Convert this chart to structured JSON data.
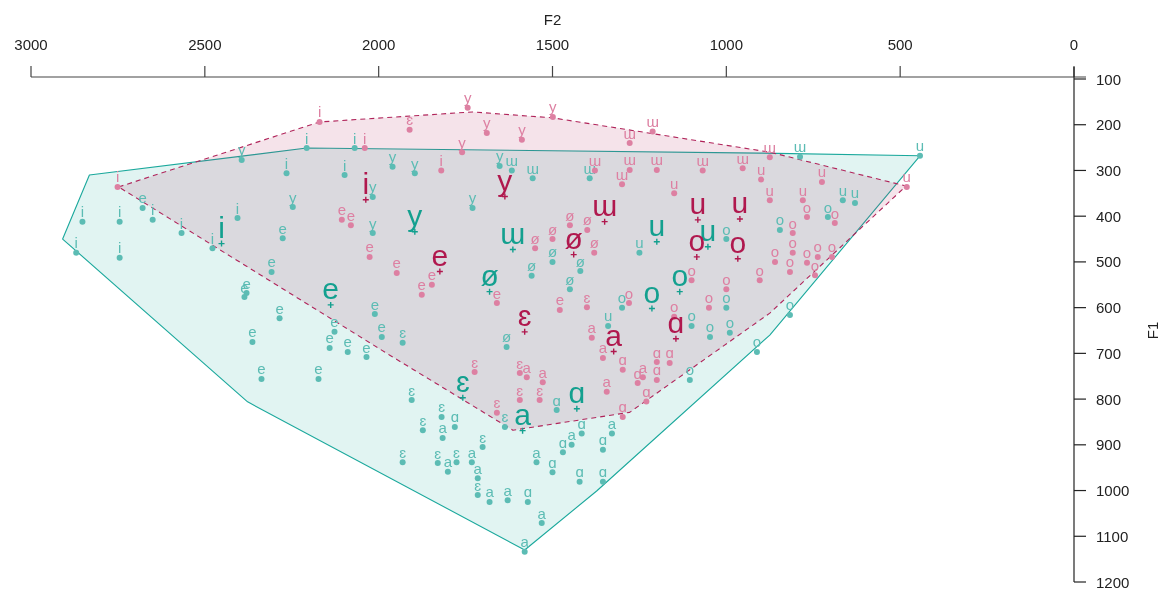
{
  "chart_data": {
    "type": "scatter",
    "xlabel": "F2",
    "ylabel": "F1",
    "xlim": [
      3000,
      0
    ],
    "xticks": [
      3000,
      2500,
      2000,
      1500,
      1000,
      500,
      0
    ],
    "ylim": [
      1200,
      100
    ],
    "yticks": [
      100,
      200,
      300,
      400,
      500,
      600,
      700,
      800,
      900,
      1000,
      1100,
      1200
    ],
    "grid": false,
    "series": [
      {
        "type": "area",
        "color": "#1aa89c",
        "line_style": "solid",
        "x": [
          2832,
          2207,
          904,
          443,
          875,
          1373,
          1580,
          2377,
          2909
        ],
        "values": [
          310,
          251,
          262,
          268,
          660,
          1001,
          1130,
          806,
          450
        ]
      },
      {
        "type": "area",
        "color": "#b0245a",
        "line_style": "dashed",
        "x": [
          2748,
          2170,
          1730,
          1499,
          875,
          483,
          875,
          1278,
          1614,
          1968
        ],
        "values": [
          336,
          194,
          172,
          185,
          260,
          334,
          612,
          829,
          868,
          704
        ]
      },
      {
        "color": "#5cbcb4",
        "marker": "circle",
        "x": [
          2852,
          2745,
          2650,
          2679,
          2567,
          2745,
          2870,
          2406,
          2478,
          2265,
          2098,
          2207,
          2069,
          2380,
          2308,
          2276,
          2386,
          2285,
          2363,
          2337,
          2173,
          2127,
          2141,
          2089,
          2035,
          2011,
          1991,
          1931,
          1905,
          1873,
          1819,
          1816,
          1781,
          1931,
          1830,
          1801,
          1776,
          1732,
          1715,
          1715,
          1681,
          1629,
          1571,
          1531,
          1580,
          1546,
          1500,
          1470,
          1445,
          1422,
          1355,
          1355,
          1329,
          1416,
          1488,
          1637,
          1701,
          1105,
          912,
          817,
          1047,
          990,
          788,
          665,
          630,
          846,
          708,
          443,
          1617,
          1652,
          1557,
          1393,
          1730,
          1896,
          1960,
          2394,
          2247,
          2017,
          2017,
          1632,
          1500,
          1560,
          1450,
          1250,
          1000,
          1300,
          1000,
          1340,
          1100,
          1420
        ],
        "values": [
          412,
          412,
          408,
          382,
          437,
          491,
          480,
          404,
          470,
          306,
          310,
          251,
          251,
          568,
          522,
          448,
          577,
          623,
          675,
          756,
          756,
          653,
          688,
          697,
          708,
          614,
          664,
          677,
          802,
          868,
          839,
          885,
          861,
          938,
          940,
          959,
          938,
          938,
          973,
          1010,
          1025,
          1021,
          1025,
          1071,
          1134,
          938,
          960,
          916,
          900,
          981,
          981,
          911,
          875,
          875,
          824,
          861,
          905,
          758,
          697,
          616,
          664,
          655,
          270,
          365,
          371,
          430,
          402,
          268,
          300,
          290,
          317,
          317,
          382,
          306,
          292,
          277,
          380,
          358,
          437,
          686,
          500,
          530,
          560,
          480,
          600,
          600,
          450,
          640,
          640,
          520
        ],
        "value_labels": [
          "i",
          "i",
          "i",
          "e",
          "i",
          "i",
          "i",
          "i",
          "i",
          "i",
          "i",
          "i",
          "i",
          "e",
          "e",
          "e",
          "e",
          "e",
          "e",
          "e",
          "e",
          "e",
          "e",
          "e",
          "e",
          "e",
          "e",
          "ɛ",
          "ɛ",
          "ɛ",
          "ɛ",
          "a",
          "ɑ",
          "ɛ",
          "ɛ",
          "a",
          "ɛ",
          "a",
          "a",
          "ɛ",
          "a",
          "a",
          "ɑ",
          "a",
          "a",
          "a",
          "ɑ",
          "ɑ",
          "a",
          "ɑ",
          "ɑ",
          "ɑ",
          "a",
          "ɑ",
          "ɑ",
          "ɛ",
          "ɛ",
          "o",
          "o",
          "o",
          "o",
          "o",
          "ɯ",
          "u",
          "u",
          "o",
          "o",
          "u",
          "ɯ",
          "y",
          "ɯ",
          "ɯ",
          "y",
          "y",
          "y",
          "y",
          "y",
          "y",
          "y",
          "ø",
          "ø",
          "ø",
          "ø",
          "u",
          "o",
          "o",
          "o",
          "u",
          "o",
          "ø"
        ]
      },
      {
        "color": "#dd80a2",
        "marker": "circle",
        "x": [
          1911,
          1744,
          1689,
          1588,
          1499,
          1278,
          1212,
          2170,
          2040,
          2751,
          1378,
          1068,
          1278,
          1200,
          953,
          875,
          900,
          725,
          481,
          780,
          875,
          809,
          768,
          688,
          809,
          737,
          768,
          817,
          745,
          696,
          860,
          904,
          2080,
          2026,
          2106,
          1948,
          1847,
          1876,
          1660,
          1724,
          1594,
          1574,
          1528,
          1401,
          1479,
          1387,
          1355,
          1298,
          1240,
          1200,
          1163,
          1230,
          1255,
          1200,
          1344,
          1298,
          1537,
          1660,
          1594,
          1450,
          1500,
          1380,
          1400,
          1550,
          1100,
          1050,
          1150,
          1000,
          1280,
          1820,
          1760,
          1300,
          1150
        ],
        "values": [
          211,
          163,
          218,
          233,
          183,
          240,
          215,
          194,
          251,
          336,
          300,
          300,
          299,
          299,
          295,
          271,
          320,
          325,
          336,
          365,
          365,
          437,
          402,
          415,
          480,
          489,
          502,
          522,
          529,
          489,
          500,
          540,
          420,
          489,
          408,
          524,
          550,
          572,
          590,
          741,
          743,
          752,
          763,
          599,
          605,
          666,
          710,
          736,
          752,
          719,
          721,
          805,
          765,
          758,
          784,
          839,
          802,
          830,
          802,
          420,
          450,
          480,
          430,
          470,
          540,
          600,
          620,
          560,
          590,
          300,
          260,
          330,
          350
        ],
        "value_labels": [
          "ɛ",
          "y",
          "y",
          "y",
          "y",
          "ɯ",
          "ɯ",
          "i",
          "i",
          "i",
          "ɯ",
          "ɯ",
          "ɯ",
          "ɯ",
          "ɯ",
          "ɯ",
          "u",
          "u",
          "u",
          "u",
          "u",
          "o",
          "o",
          "o",
          "o",
          "o",
          "o",
          "o",
          "o",
          "o",
          "o",
          "o",
          "e",
          "e",
          "e",
          "e",
          "e",
          "e",
          "e",
          "ɛ",
          "ɛ",
          "a",
          "a",
          "ɛ",
          "e",
          "a",
          "a",
          "ɑ",
          "a",
          "ɑ",
          "ɑ",
          "ɑ",
          "ɑ",
          "ɑ",
          "a",
          "ɑ",
          "ɛ",
          "ɛ",
          "ɛ",
          "ø",
          "ø",
          "ø",
          "ø",
          "ø",
          "o",
          "o",
          "o",
          "o",
          "o",
          "i",
          "y",
          "ɯ",
          "u"
        ]
      },
      {
        "color": "#13a08f",
        "marker": "cross",
        "x": [
          2452,
          1896,
          1614,
          2138,
          1681,
          1200,
          1053,
          1134,
          1214,
          1758,
          1430,
          1586
        ],
        "values": [
          460,
          434,
          473,
          594,
          565,
          456,
          467,
          565,
          602,
          797,
          821,
          869
        ],
        "value_labels": [
          "i",
          "y",
          "ɯ",
          "e",
          "ø",
          "u",
          "u",
          "o",
          "o",
          "ɛ",
          "ɑ",
          "a"
        ]
      },
      {
        "color": "#b0184e",
        "marker": "cross",
        "x": [
          2037,
          1637,
          1350,
          1439,
          1082,
          961,
          1824,
          1085,
          967,
          1580,
          1324,
          1145
        ],
        "values": [
          364,
          357,
          412,
          484,
          408,
          406,
          521,
          489,
          493,
          653,
          696,
          668
        ],
        "value_labels": [
          "i",
          "y",
          "ɯ",
          "ø",
          "u",
          "u",
          "e",
          "o",
          "o",
          "ɛ",
          "a",
          "ɑ"
        ]
      }
    ]
  }
}
